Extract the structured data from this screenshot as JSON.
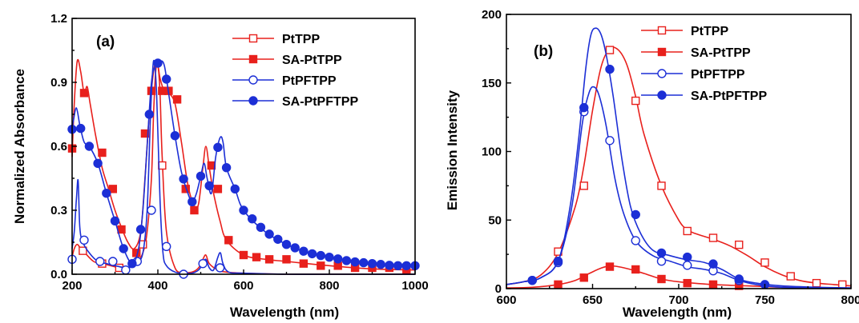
{
  "chart_data": [
    {
      "type": "line",
      "panel_label": "(a)",
      "xlabel": "Wavelength (nm)",
      "ylabel": "Normalized Absorbance",
      "xlim": [
        200,
        1000
      ],
      "ylim": [
        0,
        1.2
      ],
      "xticks": [
        200,
        400,
        600,
        800,
        1000
      ],
      "yticks": [
        0.0,
        0.3,
        0.6,
        0.9,
        1.2
      ],
      "ytick_labels": [
        "0.0",
        "0.3",
        "0.6",
        "0.9",
        "1.2"
      ],
      "legend_position": "top-right",
      "series": [
        {
          "name": "PtTPP",
          "color": "#e8201c",
          "marker": "open-square",
          "x": [
            200,
            205,
            212,
            220,
            230,
            250,
            270,
            290,
            310,
            330,
            350,
            365,
            375,
            385,
            390,
            395,
            400,
            405,
            410,
            420,
            440,
            460,
            480,
            495,
            505,
            512,
            520,
            540,
            560,
            600,
            700,
            800,
            1000
          ],
          "y": [
            0.08,
            0.12,
            0.14,
            0.12,
            0.1,
            0.06,
            0.05,
            0.04,
            0.03,
            0.03,
            0.05,
            0.1,
            0.2,
            0.45,
            0.75,
            0.95,
            0.98,
            0.85,
            0.55,
            0.2,
            0.03,
            0.01,
            0.01,
            0.03,
            0.07,
            0.09,
            0.05,
            0.02,
            0.01,
            0.005,
            0.0,
            0.0,
            0.0
          ],
          "marker_x": [
            225,
            270,
            310,
            365,
            410
          ],
          "marker_y": [
            0.11,
            0.05,
            0.03,
            0.14,
            0.51
          ]
        },
        {
          "name": "SA-PtTPP",
          "color": "#e8201c",
          "marker": "filled-square",
          "x": [
            200,
            205,
            212,
            220,
            228,
            235,
            242,
            255,
            270,
            285,
            300,
            315,
            330,
            345,
            360,
            370,
            380,
            390,
            398,
            405,
            415,
            425,
            440,
            455,
            470,
            485,
            495,
            505,
            512,
            520,
            530,
            545,
            560,
            600,
            650,
            700,
            800,
            900,
            1000
          ],
          "y": [
            0.55,
            0.8,
            1.0,
            0.95,
            0.85,
            0.88,
            0.8,
            0.65,
            0.5,
            0.4,
            0.3,
            0.22,
            0.15,
            0.12,
            0.2,
            0.45,
            0.75,
            0.95,
            1.0,
            0.92,
            0.86,
            0.85,
            0.8,
            0.62,
            0.42,
            0.32,
            0.33,
            0.5,
            0.6,
            0.5,
            0.38,
            0.25,
            0.16,
            0.09,
            0.07,
            0.06,
            0.04,
            0.025,
            0.02
          ],
          "marker_x": [
            200,
            228,
            270,
            295,
            315,
            350,
            370,
            385,
            410,
            425,
            445,
            465,
            485,
            525,
            540,
            565,
            600,
            630,
            660,
            700,
            740,
            780,
            820,
            860,
            900,
            940,
            980
          ],
          "marker_y": [
            0.59,
            0.85,
            0.57,
            0.4,
            0.21,
            0.1,
            0.66,
            0.86,
            0.86,
            0.86,
            0.82,
            0.4,
            0.3,
            0.51,
            0.4,
            0.16,
            0.09,
            0.08,
            0.07,
            0.07,
            0.05,
            0.04,
            0.04,
            0.03,
            0.03,
            0.03,
            0.02
          ]
        },
        {
          "name": "PtPFTPP",
          "color": "#1c2fd6",
          "marker": "open-circle",
          "x": [
            200,
            205,
            210,
            214,
            218,
            225,
            240,
            260,
            280,
            300,
            330,
            350,
            365,
            375,
            383,
            390,
            397,
            405,
            412,
            420,
            440,
            460,
            480,
            495,
            505,
            512,
            520,
            530,
            540,
            546,
            552,
            565,
            600,
            700,
            800,
            1000
          ],
          "y": [
            0.12,
            0.2,
            0.35,
            0.44,
            0.22,
            0.15,
            0.1,
            0.06,
            0.05,
            0.04,
            0.03,
            0.05,
            0.1,
            0.3,
            0.75,
            1.0,
            0.85,
            0.35,
            0.1,
            0.04,
            0.01,
            0.005,
            0.005,
            0.02,
            0.05,
            0.07,
            0.03,
            0.02,
            0.08,
            0.1,
            0.05,
            0.01,
            0.005,
            0.0,
            0.0,
            0.0
          ],
          "marker_x": [
            200,
            228,
            265,
            295,
            325,
            352,
            385,
            420,
            460,
            505,
            545
          ],
          "marker_y": [
            0.07,
            0.16,
            0.06,
            0.06,
            0.02,
            0.06,
            0.3,
            0.13,
            0.0,
            0.05,
            0.03
          ]
        },
        {
          "name": "SA-PtPFTPP",
          "color": "#1c2fd6",
          "marker": "filled-circle",
          "x": [
            200,
            203,
            210,
            218,
            228,
            240,
            260,
            280,
            300,
            320,
            340,
            355,
            365,
            375,
            385,
            395,
            405,
            415,
            425,
            440,
            455,
            470,
            480,
            490,
            500,
            508,
            515,
            525,
            535,
            545,
            552,
            560,
            580,
            600,
            650,
            700,
            750,
            800,
            850,
            900,
            950,
            1000
          ],
          "y": [
            0.68,
            0.72,
            0.78,
            0.7,
            0.62,
            0.6,
            0.52,
            0.38,
            0.25,
            0.12,
            0.05,
            0.12,
            0.3,
            0.6,
            0.9,
            0.98,
            1.0,
            0.98,
            0.85,
            0.65,
            0.48,
            0.38,
            0.34,
            0.38,
            0.46,
            0.52,
            0.45,
            0.38,
            0.55,
            0.64,
            0.62,
            0.5,
            0.4,
            0.3,
            0.2,
            0.14,
            0.1,
            0.08,
            0.06,
            0.05,
            0.04,
            0.04
          ]
        }
      ]
    },
    {
      "type": "line",
      "panel_label": "(b)",
      "xlabel": "Wavelength (nm)",
      "ylabel": "Emission Intensity",
      "xlim": [
        600,
        800
      ],
      "ylim": [
        0,
        200
      ],
      "xticks": [
        600,
        650,
        700,
        750,
        800
      ],
      "yticks": [
        0,
        50,
        100,
        150,
        200
      ],
      "legend_position": "top-right",
      "series": [
        {
          "name": "PtTPP",
          "color": "#e8201c",
          "marker": "open-square",
          "x": [
            600,
            610,
            620,
            630,
            640,
            645,
            650,
            655,
            660,
            665,
            670,
            675,
            680,
            690,
            700,
            705,
            710,
            720,
            730,
            740,
            750,
            760,
            770,
            780,
            790,
            800
          ],
          "y": [
            3,
            5,
            10,
            26,
            60,
            90,
            130,
            162,
            175,
            174,
            163,
            140,
            112,
            75,
            50,
            43,
            40,
            36,
            31,
            24,
            16,
            10,
            6,
            4,
            3,
            2
          ],
          "marker_x": [
            630,
            645,
            660,
            675,
            690,
            705,
            720,
            735,
            750,
            765,
            780,
            795
          ],
          "marker_y": [
            27,
            75,
            174,
            137,
            75,
            42,
            37,
            32,
            19,
            9,
            4,
            3
          ]
        },
        {
          "name": "SA-PtTPP",
          "color": "#e8201c",
          "marker": "filled-square",
          "x": [
            600,
            615,
            630,
            640,
            648,
            655,
            660,
            665,
            672,
            680,
            690,
            700,
            720,
            740,
            760,
            780,
            800
          ],
          "y": [
            0.5,
            1,
            3,
            6,
            11,
            15,
            16.5,
            16,
            14,
            11,
            7,
            5,
            3,
            2,
            1,
            0.5,
            0.3
          ],
          "marker_x": [
            630,
            645,
            660,
            675,
            690,
            705,
            720,
            735
          ],
          "marker_y": [
            3,
            8,
            16,
            14,
            7,
            4,
            3,
            2
          ]
        },
        {
          "name": "PtPFTPP",
          "color": "#1c2fd6",
          "marker": "open-circle",
          "x": [
            600,
            610,
            620,
            630,
            638,
            644,
            648,
            651,
            654,
            658,
            663,
            668,
            675,
            685,
            695,
            705,
            715,
            725,
            735,
            745,
            760,
            780,
            800
          ],
          "y": [
            3,
            5,
            8,
            20,
            60,
            120,
            143,
            147,
            140,
            118,
            80,
            55,
            35,
            24,
            20,
            16,
            14,
            11,
            6,
            3,
            1,
            0.5,
            0.2
          ],
          "marker_x": [
            615,
            630,
            645,
            660,
            675,
            690,
            705,
            720,
            735
          ],
          "marker_y": [
            6,
            19,
            129,
            108,
            35,
            20,
            17,
            13,
            6
          ]
        },
        {
          "name": "SA-PtPFTPP",
          "color": "#1c2fd6",
          "marker": "filled-circle",
          "x": [
            600,
            610,
            620,
            630,
            637,
            642,
            646,
            649,
            652,
            655,
            658,
            662,
            667,
            672,
            678,
            685,
            695,
            705,
            715,
            725,
            735,
            745,
            760,
            780,
            800
          ],
          "y": [
            3,
            5,
            8,
            20,
            60,
            110,
            160,
            185,
            190,
            185,
            170,
            140,
            95,
            60,
            40,
            28,
            24,
            21,
            19,
            14,
            7,
            4,
            2,
            1,
            0.5
          ],
          "marker_x": [
            615,
            630,
            645,
            660,
            675,
            690,
            705,
            720,
            735,
            750
          ],
          "marker_y": [
            6,
            20,
            132,
            160,
            54,
            26,
            23,
            18,
            7,
            3
          ]
        }
      ]
    }
  ]
}
